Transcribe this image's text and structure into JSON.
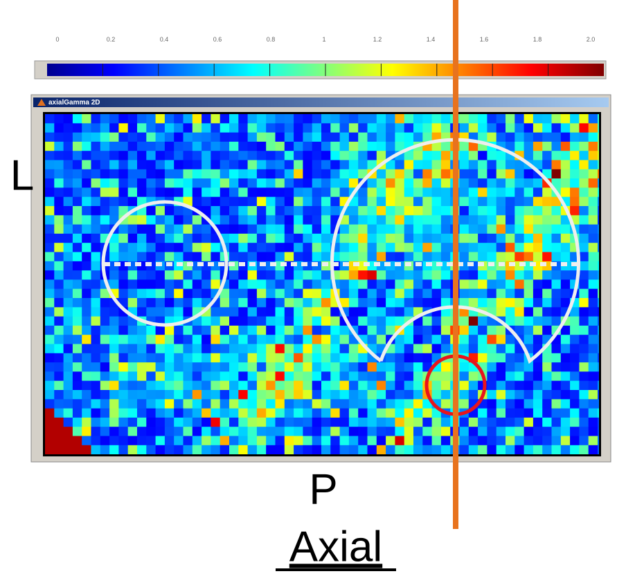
{
  "colorbar": {
    "ticks": [
      "0",
      "0.2",
      "0.4",
      "0.6",
      "0.8",
      "1",
      "1.2",
      "1.4",
      "1.6",
      "1.8",
      "2.0"
    ]
  },
  "window": {
    "title": "axialGamma 2D"
  },
  "labels": {
    "left": "L",
    "bottom": "P",
    "view": "Axial"
  }
}
